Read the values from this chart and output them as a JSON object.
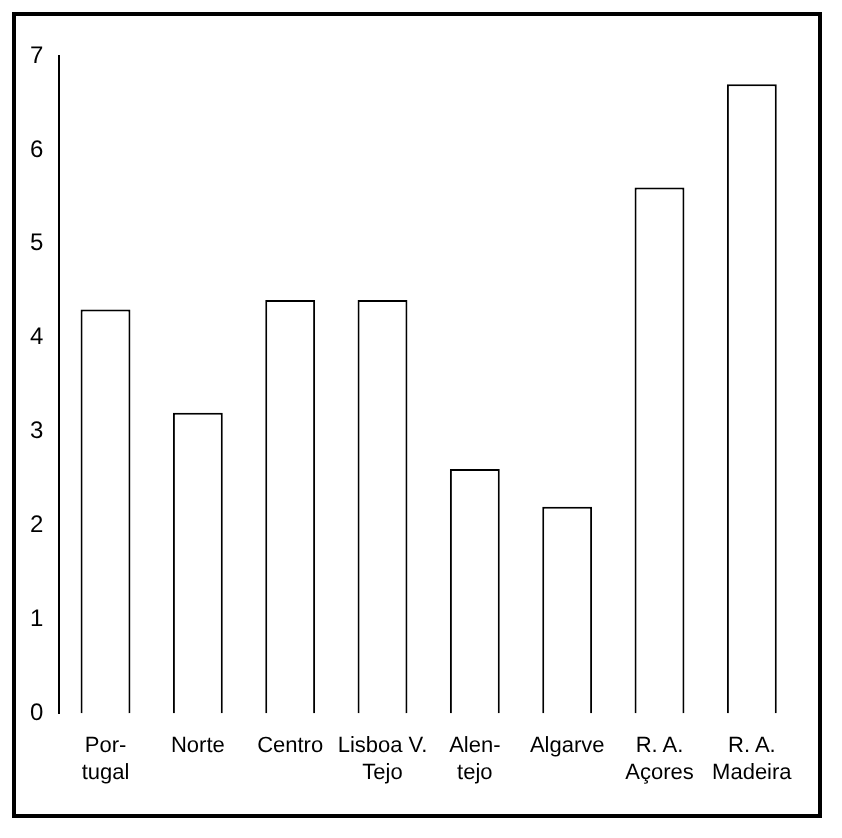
{
  "chart_data": {
    "type": "bar",
    "categories": [
      "Por-\ntugal",
      "Norte",
      "Centro",
      "Lisboa V.\nTejo",
      "Alen-\ntejo",
      "Algarve",
      "R. A.\nAçores",
      "R. A.\nMadeira"
    ],
    "values": [
      4.3,
      3.2,
      4.4,
      4.4,
      2.6,
      2.2,
      5.6,
      6.7
    ],
    "color": "#ffffff",
    "ylim": [
      0,
      7
    ],
    "yticks": [
      0,
      1,
      2,
      3,
      4,
      5,
      6,
      7
    ],
    "grid": false,
    "legend": false
  }
}
